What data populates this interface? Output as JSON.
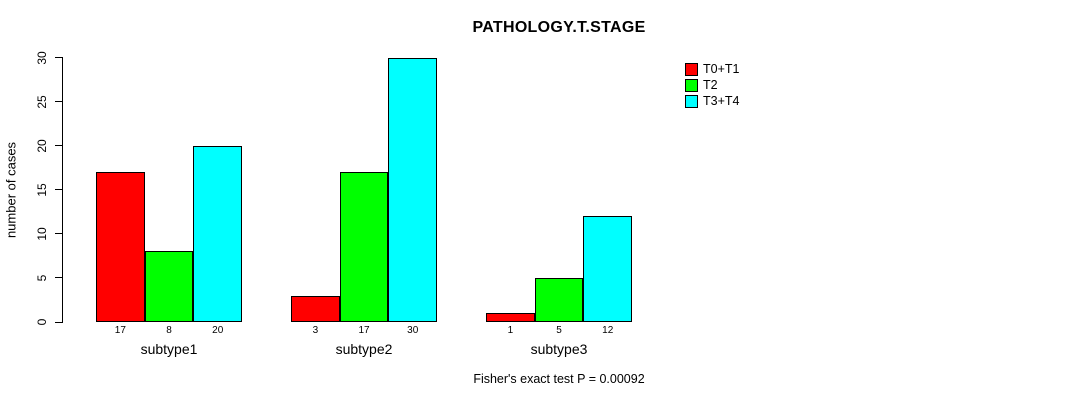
{
  "chart_data": {
    "type": "bar",
    "title": "PATHOLOGY.T.STAGE",
    "ylabel": "number of cases",
    "xlabel": "",
    "categories": [
      "subtype1",
      "subtype2",
      "subtype3"
    ],
    "series": [
      {
        "name": "T0+T1",
        "color": "#FF0000",
        "values": [
          17,
          3,
          1
        ]
      },
      {
        "name": "T2",
        "color": "#00FF00",
        "values": [
          8,
          17,
          5
        ]
      },
      {
        "name": "T3+T4",
        "color": "#00FFFF",
        "values": [
          20,
          30,
          12
        ]
      }
    ],
    "ylim": [
      0,
      30
    ],
    "yticks": [
      0,
      5,
      10,
      15,
      20,
      25,
      30
    ],
    "bar_value_labels_shown": true,
    "grid": false,
    "legend_position": "right",
    "annotation": "Fisher's exact test P = 0.00092",
    "background_color": "#FFFFFF",
    "axis_color": "#000000"
  }
}
